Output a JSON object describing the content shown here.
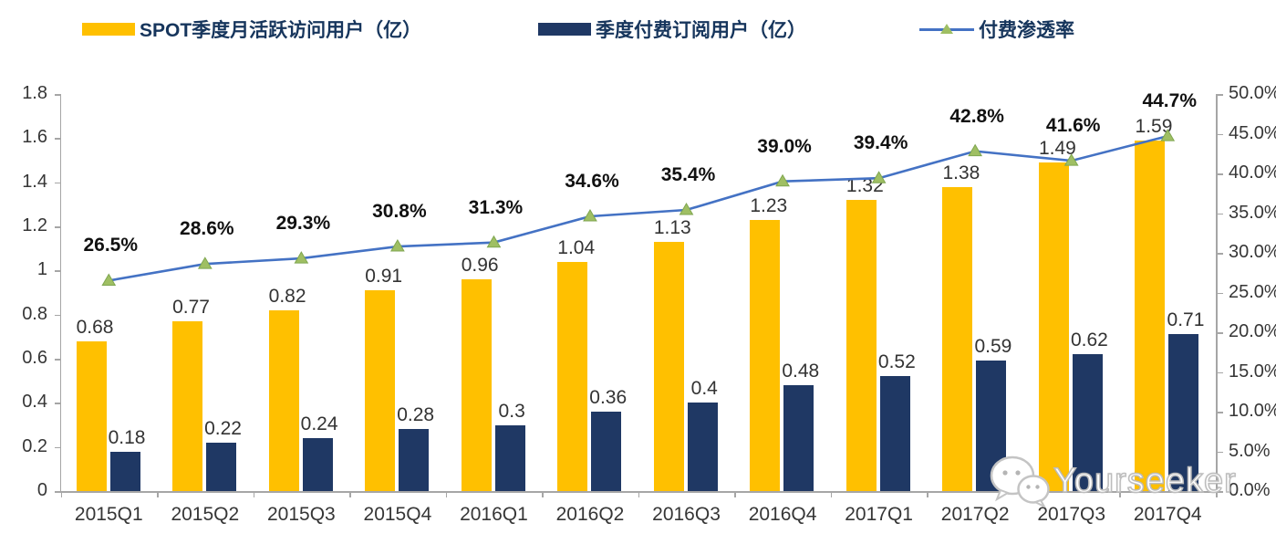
{
  "legend": {
    "items": [
      {
        "label": "SPOT季度月活跃访问用户（亿）",
        "color": "#FFC000",
        "kind": "bar"
      },
      {
        "label": "季度付费订阅用户（亿）",
        "color": "#1F3864",
        "kind": "bar"
      },
      {
        "label": "付费渗透率",
        "color": "#4472C4",
        "marker_color": "#9FBF63",
        "kind": "line"
      }
    ]
  },
  "chart_data": {
    "type": "bar+line combo",
    "categories": [
      "2015Q1",
      "2015Q2",
      "2015Q3",
      "2015Q4",
      "2016Q1",
      "2016Q2",
      "2016Q3",
      "2016Q4",
      "2017Q1",
      "2017Q2",
      "2017Q3",
      "2017Q4"
    ],
    "series": [
      {
        "name": "SPOT季度月活跃访问用户（亿）",
        "type": "bar",
        "axis": "left",
        "color": "#FFC000",
        "values": [
          0.68,
          0.77,
          0.82,
          0.91,
          0.96,
          1.04,
          1.13,
          1.23,
          1.32,
          1.38,
          1.49,
          1.59
        ],
        "labels": [
          "0.68",
          "0.77",
          "0.82",
          "0.91",
          "0.96",
          "1.04",
          "1.13",
          "1.23",
          "1.32",
          "1.38",
          "1.49",
          "1.59"
        ]
      },
      {
        "name": "季度付费订阅用户（亿）",
        "type": "bar",
        "axis": "left",
        "color": "#1F3864",
        "values": [
          0.18,
          0.22,
          0.24,
          0.28,
          0.3,
          0.36,
          0.4,
          0.48,
          0.52,
          0.59,
          0.62,
          0.71
        ],
        "labels": [
          "0.18",
          "0.22",
          "0.24",
          "0.28",
          "0.3",
          "0.36",
          "0.4",
          "0.48",
          "0.52",
          "0.59",
          "0.62",
          "0.71"
        ]
      },
      {
        "name": "付费渗透率",
        "type": "line",
        "axis": "right",
        "color": "#4472C4",
        "marker_color": "#9FBF63",
        "marker_stroke": "#7FA650",
        "values": [
          26.5,
          28.6,
          29.3,
          30.8,
          31.3,
          34.6,
          35.4,
          39.0,
          39.4,
          42.8,
          41.6,
          44.7
        ],
        "labels": [
          "26.5%",
          "28.6%",
          "29.3%",
          "30.8%",
          "31.3%",
          "34.6%",
          "35.4%",
          "39.0%",
          "39.4%",
          "42.8%",
          "41.6%",
          "44.7%"
        ]
      }
    ],
    "left_axis": {
      "min": 0,
      "max": 1.8,
      "tick_labels": [
        "0",
        "0.2",
        "0.4",
        "0.6",
        "0.8",
        "1",
        "1.2",
        "1.4",
        "1.6",
        "1.8"
      ]
    },
    "right_axis": {
      "min": 0,
      "max": 50,
      "tick_labels": [
        "0.0%",
        "5.0%",
        "10.0%",
        "15.0%",
        "20.0%",
        "25.0%",
        "30.0%",
        "35.0%",
        "40.0%",
        "45.0%",
        "50.0%"
      ]
    },
    "grid": "off",
    "legend_position": "top"
  },
  "watermark": {
    "text": "Yourseeker",
    "icon": "wechat-icon"
  }
}
